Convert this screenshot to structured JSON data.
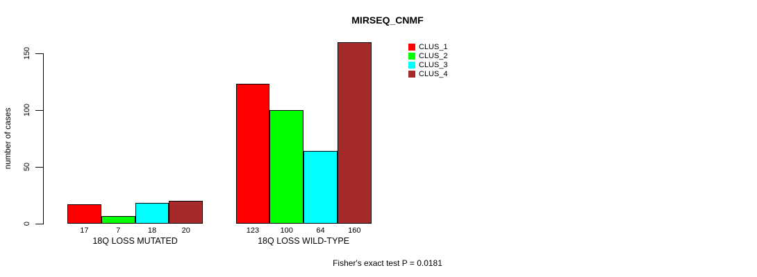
{
  "title": "MIRSEQ_CNMF",
  "footer": "Fisher's exact test P = 0.0181",
  "chart_data": {
    "type": "bar",
    "title": "MIRSEQ_CNMF",
    "xlabel": "",
    "ylabel": "number of cases",
    "groups": [
      "18Q LOSS MUTATED",
      "18Q LOSS WILD-TYPE"
    ],
    "series": [
      {
        "name": "CLUS_1",
        "color": "#ff0000",
        "values": [
          17,
          123
        ]
      },
      {
        "name": "CLUS_2",
        "color": "#00ff00",
        "values": [
          7,
          100
        ]
      },
      {
        "name": "CLUS_3",
        "color": "#00ffff",
        "values": [
          18,
          64
        ]
      },
      {
        "name": "CLUS_4",
        "color": "#a52a2a",
        "values": [
          20,
          160
        ]
      }
    ],
    "bar_value_labels_shown": true,
    "yticks": [
      0,
      50,
      100,
      150
    ],
    "ylim": [
      0,
      150
    ],
    "grid": false,
    "legend_position": "top-right",
    "annotation": "Fisher's exact test P = 0.0181"
  }
}
